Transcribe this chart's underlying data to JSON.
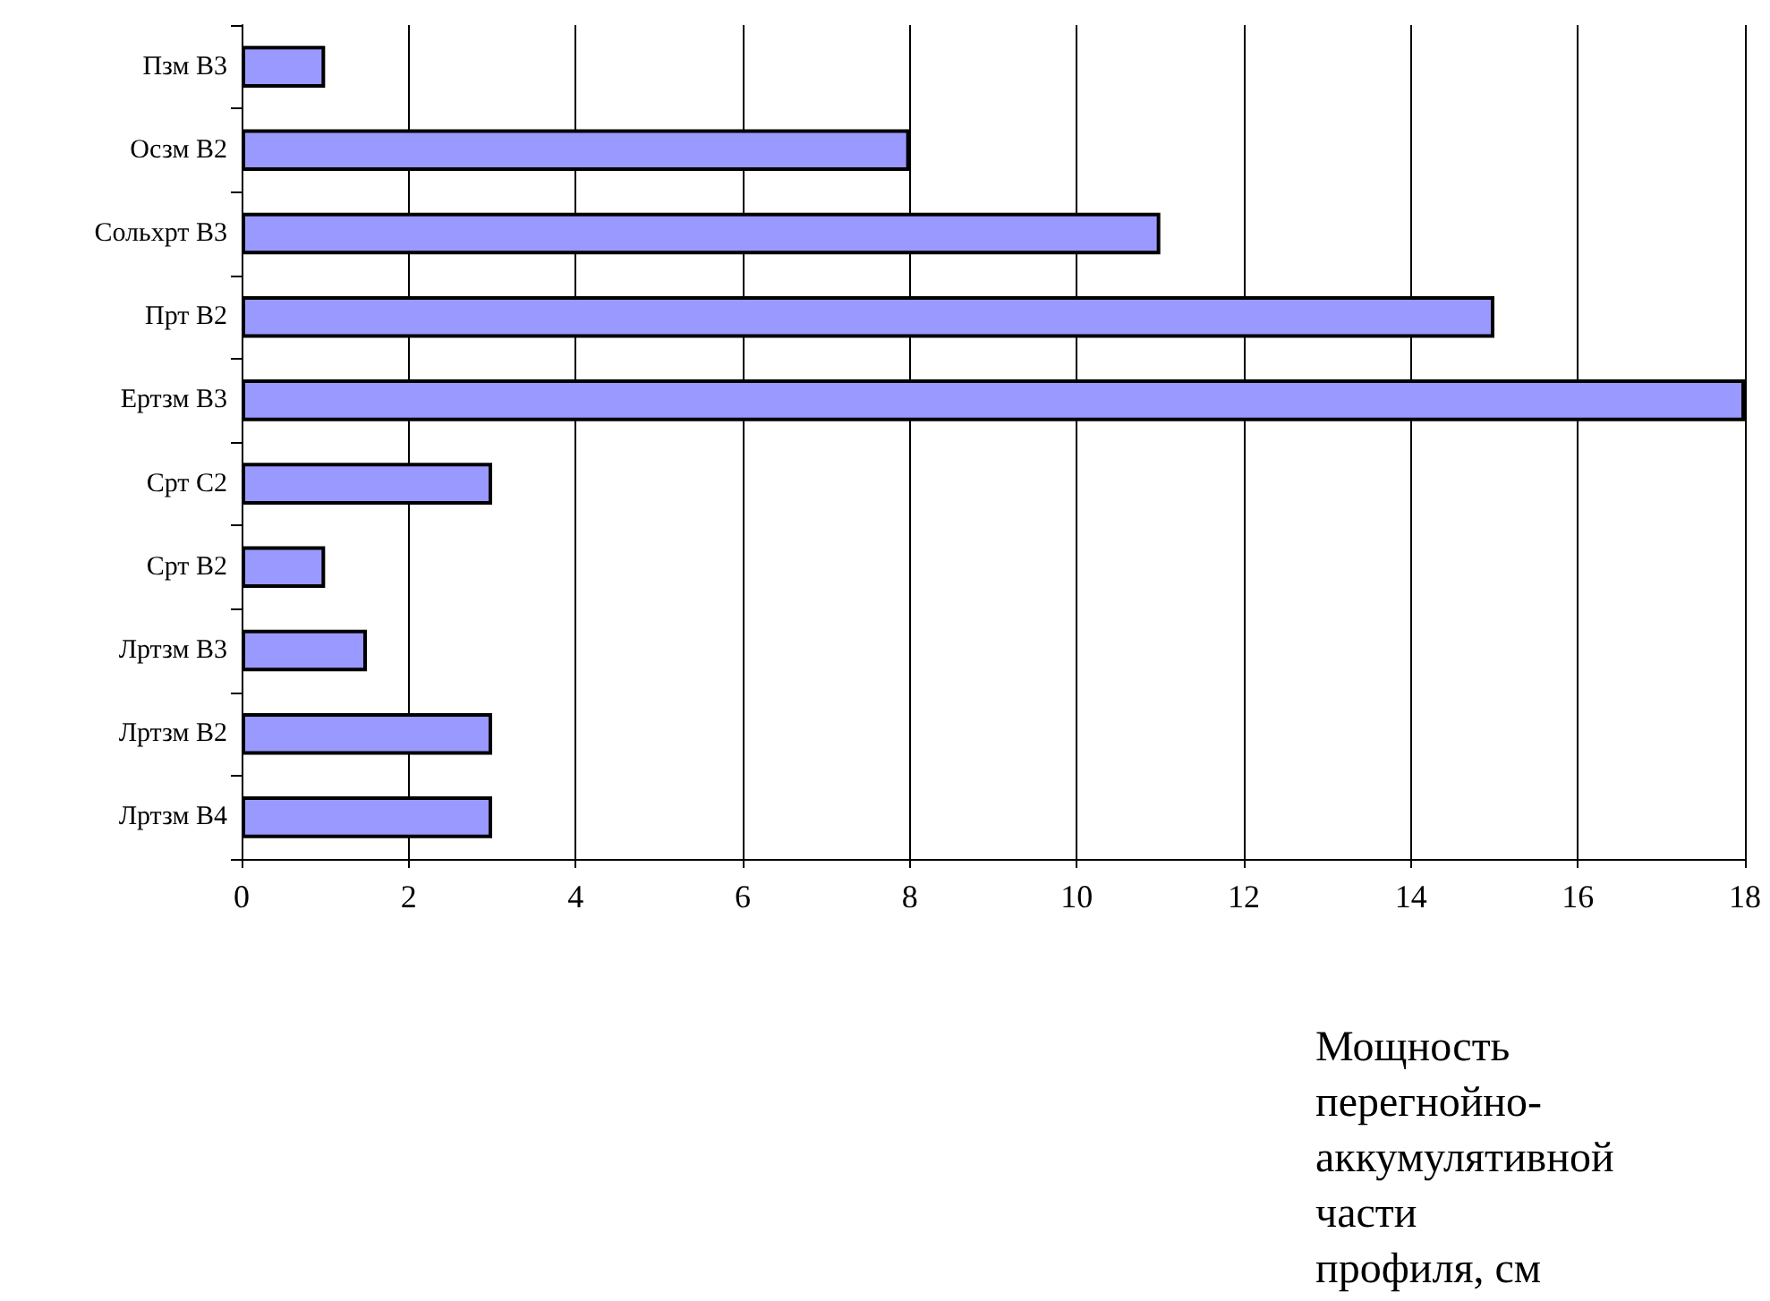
{
  "chart_data": {
    "type": "bar",
    "orientation": "horizontal",
    "categories": [
      "Пзм В3",
      "Осзм В2",
      "Сольхрт В3",
      "Прт В2",
      "Ертзм В3",
      "Срт С2",
      "Срт В2",
      "Лртзм В3",
      "Лртзм В2",
      "Лртзм В4"
    ],
    "values": [
      1,
      8,
      11,
      15,
      18,
      3,
      1,
      1.5,
      3,
      3
    ],
    "color": "#9999ff",
    "xlabel": "Мощность перегнойно-аккумулятивной части профиля, см",
    "xlim": [
      0,
      18
    ],
    "xticks": [
      0,
      2,
      4,
      6,
      8,
      10,
      12,
      14,
      16,
      18
    ],
    "grid": "x"
  }
}
